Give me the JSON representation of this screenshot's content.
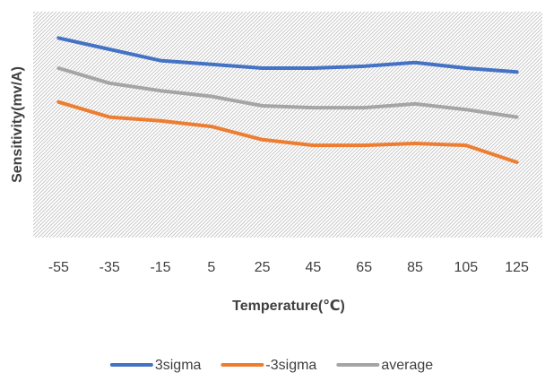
{
  "chart_data": {
    "type": "line",
    "title": "",
    "xlabel": "Temperature(℃)",
    "ylabel": "Sensitivity(mv/A)",
    "categories": [
      "-55",
      "-35",
      "-15",
      "5",
      "25",
      "45",
      "65",
      "85",
      "105",
      "125"
    ],
    "ylim": [
      0,
      6
    ],
    "y_tick_labels_shown": false,
    "grid": false,
    "plot_background": "diagonal hatch",
    "legend": "bottom",
    "series": [
      {
        "name": "3sigma",
        "color": "#4472C4",
        "values": [
          5.3,
          5.0,
          4.7,
          4.6,
          4.5,
          4.5,
          4.55,
          4.65,
          4.5,
          4.4
        ]
      },
      {
        "name": "-3sigma",
        "color": "#ED7D31",
        "values": [
          3.6,
          3.2,
          3.1,
          2.95,
          2.6,
          2.45,
          2.45,
          2.5,
          2.45,
          2.0
        ]
      },
      {
        "name": "average",
        "color": "#A5A5A5",
        "values": [
          4.5,
          4.1,
          3.9,
          3.75,
          3.5,
          3.45,
          3.45,
          3.55,
          3.4,
          3.2
        ]
      }
    ]
  }
}
